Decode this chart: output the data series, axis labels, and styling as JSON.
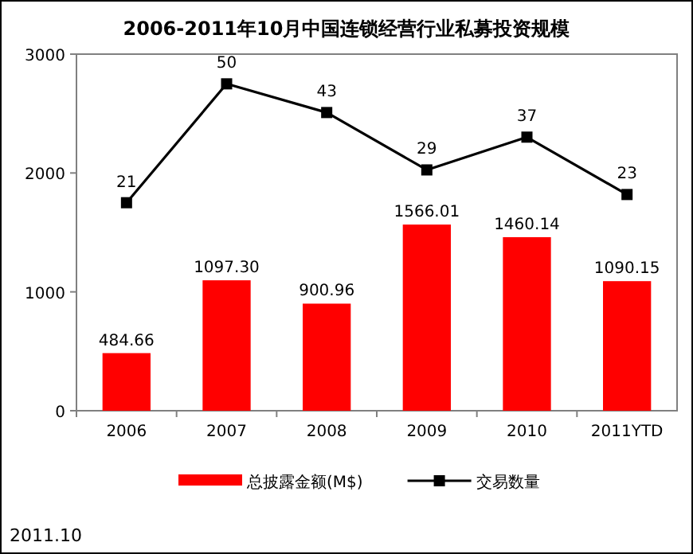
{
  "chart_data": {
    "type": "bar",
    "title": "2006-2011年10月中国连锁经营行业私募投资规模",
    "categories": [
      "2006",
      "2007",
      "2008",
      "2009",
      "2010",
      "2011YTD"
    ],
    "series": [
      {
        "name": "总披露金额(M$)",
        "color": "#ff0000",
        "values": [
          484.66,
          1097.3,
          900.96,
          1566.01,
          1460.14,
          1090.15
        ],
        "value_labels": [
          "484.66",
          "1097.30",
          "900.96",
          "1566.01",
          "1460.14",
          "1090.15"
        ]
      },
      {
        "name": "交易数量",
        "type": "line",
        "axis": "y2",
        "color": "#000000",
        "marker": "square",
        "values": [
          21,
          50,
          43,
          29,
          37,
          23
        ],
        "value_labels": [
          "21",
          "50",
          "43",
          "29",
          "37",
          "23"
        ]
      }
    ],
    "ylim": [
      0,
      3000
    ],
    "yticks": [
      0,
      1000,
      2000,
      3000
    ],
    "y2lim": [
      -29.75,
      57.25
    ],
    "legend": "bottom",
    "annotations": [
      "2011.10"
    ]
  }
}
